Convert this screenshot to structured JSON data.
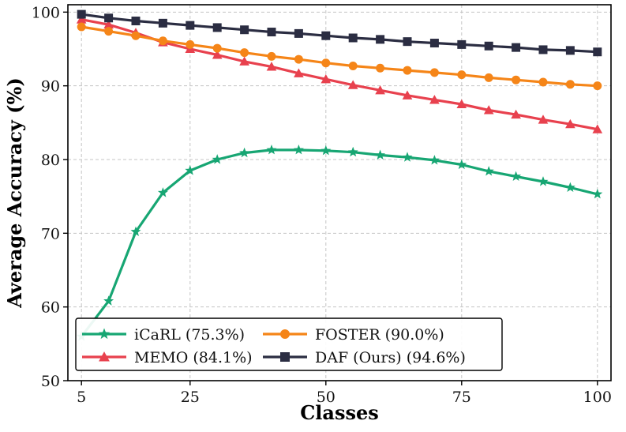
{
  "chart_data": {
    "type": "line",
    "title": "",
    "xlabel": "Classes",
    "ylabel": "Average Accuracy (%)",
    "xlim": [
      2.5,
      102.5
    ],
    "ylim": [
      50,
      101
    ],
    "xticks": [
      5,
      25,
      50,
      75,
      100
    ],
    "yticks": [
      50,
      60,
      70,
      80,
      90,
      100
    ],
    "grid": true,
    "legend_position": "lower-left",
    "x": [
      5,
      10,
      15,
      20,
      25,
      30,
      35,
      40,
      45,
      50,
      55,
      60,
      65,
      70,
      75,
      80,
      85,
      90,
      95,
      100
    ],
    "series": [
      {
        "name": "iCaRL (75.3%)",
        "color": "#17a673",
        "marker": "star",
        "values": [
          56.0,
          60.8,
          70.2,
          75.5,
          78.5,
          80.0,
          80.9,
          81.3,
          81.3,
          81.2,
          81.0,
          80.6,
          80.3,
          79.9,
          79.3,
          78.4,
          77.7,
          77.0,
          76.2,
          75.3
        ]
      },
      {
        "name": "MEMO (84.1%)",
        "color": "#e8414e",
        "marker": "triangle",
        "values": [
          99.0,
          98.3,
          97.2,
          95.9,
          95.0,
          94.2,
          93.3,
          92.6,
          91.7,
          90.9,
          90.1,
          89.4,
          88.7,
          88.1,
          87.5,
          86.7,
          86.1,
          85.4,
          84.8,
          84.1
        ]
      },
      {
        "name": "FOSTER (90.0%)",
        "color": "#f58518",
        "marker": "circle",
        "values": [
          98.0,
          97.4,
          96.8,
          96.1,
          95.6,
          95.1,
          94.5,
          94.0,
          93.6,
          93.1,
          92.7,
          92.4,
          92.1,
          91.8,
          91.5,
          91.1,
          90.8,
          90.5,
          90.2,
          90.0
        ]
      },
      {
        "name": "DAF (Ours) (94.6%)",
        "color": "#2b2d42",
        "marker": "square",
        "values": [
          99.7,
          99.2,
          98.8,
          98.5,
          98.2,
          97.9,
          97.6,
          97.3,
          97.1,
          96.8,
          96.5,
          96.3,
          96.0,
          95.8,
          95.6,
          95.4,
          95.2,
          94.9,
          94.8,
          94.6
        ]
      }
    ]
  }
}
